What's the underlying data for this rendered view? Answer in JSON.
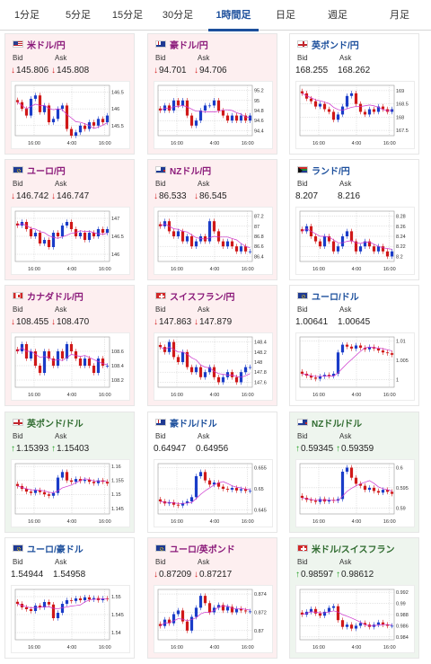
{
  "tabs": [
    {
      "label": "1分足",
      "active": false
    },
    {
      "label": "5分足",
      "active": false
    },
    {
      "label": "15分足",
      "active": false
    },
    {
      "label": "30分足",
      "active": false
    },
    {
      "label": "1時間足",
      "active": true
    },
    {
      "label": "日足",
      "active": false
    },
    {
      "label": "週足",
      "active": false
    },
    {
      "label": "月足",
      "active": false
    }
  ],
  "labels": {
    "bid": "Bid",
    "ask": "Ask"
  },
  "colors": {
    "up_candle": "#1a3cc8",
    "down_candle": "#d01818",
    "ma_line": "#cc33cc",
    "grid": "#bbbbbb"
  },
  "cards": [
    {
      "title": "米ドル/円",
      "flag": "us",
      "trend": "down",
      "bid": "145.806",
      "ask": "145.808",
      "chart_data": {
        "type": "candlestick",
        "y_ticks": [
          "146.5",
          "146",
          "145.5"
        ],
        "x_ticks": [
          "16:00",
          "4:00",
          "16:00"
        ],
        "close": [
          146.2,
          146.0,
          145.8,
          146.3,
          146.4,
          145.9,
          146.1,
          145.6,
          145.7,
          146.0,
          146.1,
          145.4,
          145.2,
          145.3,
          145.5,
          145.4,
          145.6,
          145.5,
          145.7,
          145.6,
          145.8
        ],
        "ylim": [
          145.2,
          146.7
        ]
      }
    },
    {
      "title": "豪ドル/円",
      "flag": "au",
      "trend": "down",
      "bid": "94.701",
      "ask": "94.706",
      "chart_data": {
        "type": "candlestick",
        "y_ticks": [
          "95.2",
          "95",
          "94.8",
          "94.6",
          "94.4"
        ],
        "x_ticks": [
          "16:00",
          "4:00",
          "16:00"
        ],
        "close": [
          94.8,
          94.9,
          94.8,
          95.0,
          94.9,
          95.0,
          94.7,
          94.5,
          94.6,
          94.8,
          94.9,
          94.9,
          95.0,
          94.8,
          94.7,
          94.6,
          94.7,
          94.6,
          94.7,
          94.6,
          94.7
        ],
        "ylim": [
          94.3,
          95.3
        ]
      }
    },
    {
      "title": "英ポンド/円",
      "flag": "gb",
      "trend": "flat",
      "bid": "168.255",
      "ask": "168.262",
      "chart_data": {
        "type": "candlestick",
        "y_ticks": [
          "169",
          "168.5",
          "168",
          "167.5"
        ],
        "x_ticks": [
          "16:00",
          "4:00",
          "16:00"
        ],
        "close": [
          168.9,
          168.7,
          168.6,
          168.4,
          168.5,
          168.3,
          168.2,
          167.9,
          168.1,
          168.4,
          168.8,
          168.9,
          168.5,
          168.2,
          168.1,
          168.3,
          168.2,
          168.4,
          168.3,
          168.2,
          168.3
        ],
        "ylim": [
          167.3,
          169.2
        ]
      }
    },
    {
      "title": "ユーロ/円",
      "flag": "eu",
      "trend": "down",
      "bid": "146.742",
      "ask": "146.747",
      "chart_data": {
        "type": "candlestick",
        "y_ticks": [
          "147",
          "146.5",
          "146"
        ],
        "x_ticks": [
          "16:00",
          "4:00",
          "16:00"
        ],
        "close": [
          146.8,
          146.9,
          146.7,
          146.5,
          146.6,
          146.3,
          146.4,
          146.2,
          146.6,
          146.5,
          146.8,
          146.9,
          146.7,
          146.5,
          146.6,
          146.4,
          146.6,
          146.5,
          146.7,
          146.6,
          146.7
        ],
        "ylim": [
          145.8,
          147.2
        ]
      }
    },
    {
      "title": "NZドル/円",
      "flag": "nz",
      "trend": "down",
      "bid": "86.533",
      "ask": "86.545",
      "chart_data": {
        "type": "candlestick",
        "y_ticks": [
          "87.2",
          "87",
          "86.8",
          "86.6",
          "86.4"
        ],
        "x_ticks": [
          "16:00",
          "4:00",
          "16:00"
        ],
        "close": [
          87.0,
          87.1,
          86.9,
          86.8,
          86.9,
          86.7,
          86.8,
          86.6,
          86.7,
          86.8,
          86.7,
          87.1,
          86.9,
          86.7,
          86.6,
          86.7,
          86.6,
          86.5,
          86.6,
          86.5,
          86.5
        ],
        "ylim": [
          86.3,
          87.3
        ]
      }
    },
    {
      "title": "ランド/円",
      "flag": "za",
      "trend": "flat",
      "bid": "8.207",
      "ask": "8.216",
      "chart_data": {
        "type": "candlestick",
        "y_ticks": [
          "8.28",
          "8.26",
          "8.24",
          "8.22",
          "8.2"
        ],
        "x_ticks": [
          "16:00",
          "4:00",
          "16:00"
        ],
        "close": [
          8.25,
          8.26,
          8.24,
          8.23,
          8.22,
          8.24,
          8.23,
          8.21,
          8.22,
          8.24,
          8.25,
          8.23,
          8.21,
          8.22,
          8.23,
          8.22,
          8.21,
          8.22,
          8.21,
          8.2,
          8.21
        ],
        "ylim": [
          8.19,
          8.29
        ]
      }
    },
    {
      "title": "カナダドル/円",
      "flag": "ca",
      "trend": "down",
      "bid": "108.455",
      "ask": "108.470",
      "chart_data": {
        "type": "candlestick",
        "y_ticks": [
          "108.6",
          "108.4",
          "108.2"
        ],
        "x_ticks": [
          "16:00",
          "4:00",
          "16:00"
        ],
        "close": [
          108.6,
          108.7,
          108.5,
          108.6,
          108.4,
          108.3,
          108.6,
          108.5,
          108.4,
          108.6,
          108.5,
          108.7,
          108.6,
          108.5,
          108.4,
          108.5,
          108.4,
          108.3,
          108.5,
          108.4,
          108.4
        ],
        "ylim": [
          108.1,
          108.8
        ]
      }
    },
    {
      "title": "スイスフラン/円",
      "flag": "ch",
      "trend": "down",
      "bid": "147.863",
      "ask": "147.879",
      "chart_data": {
        "type": "candlestick",
        "y_ticks": [
          "148.4",
          "148.2",
          "148",
          "147.8",
          "147.6"
        ],
        "x_ticks": [
          "16:00",
          "4:00",
          "16:00"
        ],
        "close": [
          148.3,
          148.2,
          148.4,
          148.1,
          148.0,
          148.2,
          147.9,
          147.8,
          147.9,
          147.7,
          147.8,
          147.9,
          147.7,
          147.6,
          147.7,
          147.8,
          147.7,
          147.6,
          147.8,
          147.9,
          147.9
        ],
        "ylim": [
          147.5,
          148.5
        ]
      }
    },
    {
      "title": "ユーロ/ドル",
      "flag": "eu",
      "trend": "flat",
      "bid": "1.00641",
      "ask": "1.00645",
      "chart_data": {
        "type": "candlestick",
        "y_ticks": [
          "1.01",
          "1.005",
          "1"
        ],
        "x_ticks": [
          "16:00",
          "4:00",
          "16:00"
        ],
        "close": [
          1.0015,
          1.001,
          1.0005,
          1.0002,
          1.0008,
          1.0012,
          1.0009,
          1.0015,
          1.007,
          1.009,
          1.0085,
          1.008,
          1.0088,
          1.0082,
          1.0078,
          1.0084,
          1.008,
          1.0075,
          1.007,
          1.0068,
          1.0064
        ],
        "ylim": [
          0.998,
          1.011
        ]
      }
    },
    {
      "title": "英ポンド/ドル",
      "flag": "gb",
      "trend": "up",
      "bid": "1.15393",
      "ask": "1.15403",
      "chart_data": {
        "type": "candlestick",
        "y_ticks": [
          "1.16",
          "1.155",
          "1.15",
          "1.145"
        ],
        "x_ticks": [
          "16:00",
          "4:00",
          "16:00"
        ],
        "close": [
          1.153,
          1.152,
          1.151,
          1.1505,
          1.1515,
          1.1508,
          1.15,
          1.1495,
          1.1505,
          1.156,
          1.158,
          1.155,
          1.1545,
          1.1555,
          1.1548,
          1.1552,
          1.1545,
          1.154,
          1.155,
          1.1545,
          1.1539
        ],
        "ylim": [
          1.143,
          1.161
        ]
      }
    },
    {
      "title": "豪ドル/ドル",
      "flag": "au",
      "trend": "flat",
      "bid": "0.64947",
      "ask": "0.64956",
      "chart_data": {
        "type": "candlestick",
        "y_ticks": [
          "0.655",
          "0.65",
          "0.645"
        ],
        "x_ticks": [
          "16:00",
          "4:00",
          "16:00"
        ],
        "close": [
          0.647,
          0.6465,
          0.6468,
          0.6462,
          0.646,
          0.6466,
          0.647,
          0.648,
          0.653,
          0.654,
          0.652,
          0.651,
          0.6515,
          0.6505,
          0.65,
          0.6498,
          0.6502,
          0.6496,
          0.6499,
          0.6495,
          0.6495
        ],
        "ylim": [
          0.644,
          0.656
        ]
      }
    },
    {
      "title": "NZドル/ドル",
      "flag": "nz",
      "trend": "up",
      "bid": "0.59345",
      "ask": "0.59359",
      "chart_data": {
        "type": "candlestick",
        "y_ticks": [
          "0.6",
          "0.595",
          "0.59"
        ],
        "x_ticks": [
          "16:00",
          "4:00",
          "16:00"
        ],
        "close": [
          0.5925,
          0.592,
          0.5918,
          0.5915,
          0.5922,
          0.5916,
          0.592,
          0.5918,
          0.5922,
          0.599,
          0.6,
          0.5975,
          0.596,
          0.5955,
          0.5945,
          0.595,
          0.5942,
          0.5938,
          0.5945,
          0.594,
          0.5935
        ],
        "ylim": [
          0.5885,
          0.601
        ]
      }
    },
    {
      "title": "ユーロ/豪ドル",
      "flag": "eu",
      "trend": "flat",
      "bid": "1.54944",
      "ask": "1.54958",
      "chart_data": {
        "type": "candlestick",
        "y_ticks": [
          "1.55",
          "1.545",
          "1.54"
        ],
        "x_ticks": [
          "16:00",
          "4:00",
          "16:00"
        ],
        "close": [
          1.548,
          1.547,
          1.5465,
          1.546,
          1.5475,
          1.547,
          1.5485,
          1.5478,
          1.544,
          1.5455,
          1.548,
          1.549,
          1.5488,
          1.5495,
          1.549,
          1.5498,
          1.5492,
          1.5496,
          1.549,
          1.5495,
          1.5494
        ],
        "ylim": [
          1.538,
          1.552
        ]
      }
    },
    {
      "title": "ユーロ/英ポンド",
      "flag": "eu",
      "trend": "down",
      "bid": "0.87209",
      "ask": "0.87217",
      "chart_data": {
        "type": "candlestick",
        "y_ticks": [
          "0.874",
          "0.872",
          "0.87"
        ],
        "x_ticks": [
          "16:00",
          "4:00",
          "16:00"
        ],
        "close": [
          0.8705,
          0.8712,
          0.8708,
          0.8718,
          0.8722,
          0.871,
          0.87,
          0.8715,
          0.8725,
          0.8738,
          0.873,
          0.872,
          0.8725,
          0.8728,
          0.8722,
          0.8726,
          0.872,
          0.8724,
          0.8722,
          0.8721,
          0.8721
        ],
        "ylim": [
          0.869,
          0.8745
        ]
      }
    },
    {
      "title": "米ドル/スイスフラン",
      "flag": "ch",
      "trend": "up",
      "bid": "0.98597",
      "ask": "0.98612",
      "chart_data": {
        "type": "candlestick",
        "y_ticks": [
          "0.992",
          "0.99",
          "0.988",
          "0.986",
          "0.984"
        ],
        "x_ticks": [
          "16:00",
          "4:00",
          "16:00"
        ],
        "close": [
          0.988,
          0.9885,
          0.989,
          0.9882,
          0.9878,
          0.9885,
          0.9892,
          0.9895,
          0.987,
          0.9858,
          0.9862,
          0.9855,
          0.986,
          0.9865,
          0.9862,
          0.9858,
          0.9862,
          0.9866,
          0.9862,
          0.986,
          0.986
        ],
        "ylim": [
          0.9835,
          0.9925
        ]
      }
    }
  ]
}
